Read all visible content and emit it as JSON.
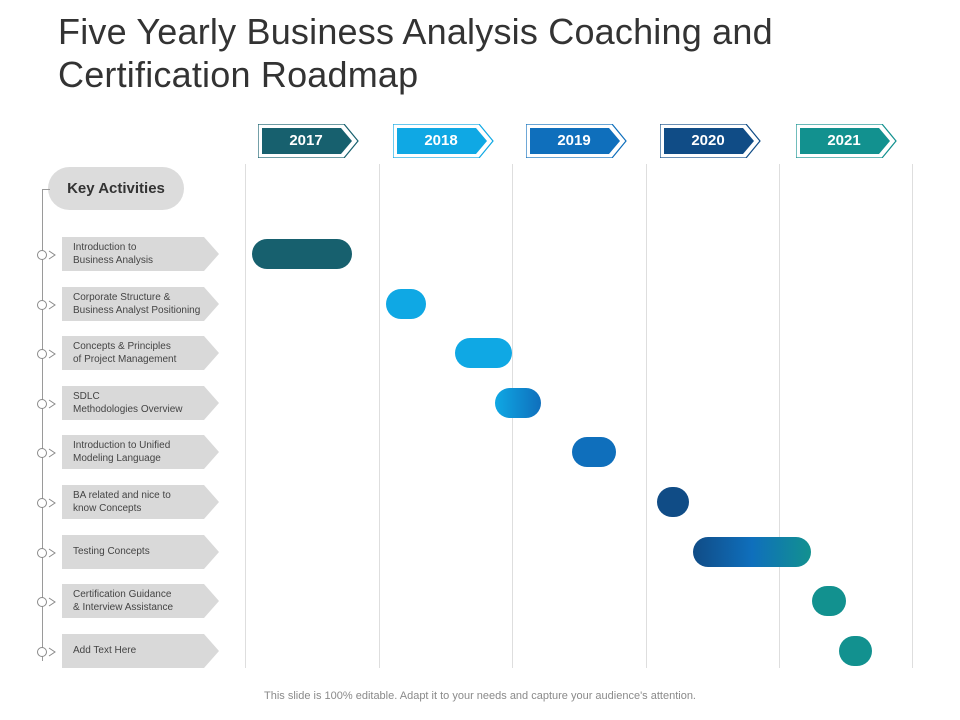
{
  "title": "Five Yearly Business Analysis Coaching and Certification Roadmap",
  "years": [
    {
      "label": "2017",
      "color": "#17606e"
    },
    {
      "label": "2018",
      "color": "#0fa8e4"
    },
    {
      "label": "2019",
      "color": "#0f6fbc"
    },
    {
      "label": "2020",
      "color": "#104c86"
    },
    {
      "label": "2021",
      "color": "#12918f"
    }
  ],
  "key_activities_label": "Key Activities",
  "activities": [
    {
      "label": "Introduction to\nBusiness Analysis",
      "start": 2017.05,
      "end": 2017.8,
      "color": "#17606e"
    },
    {
      "label": "Corporate Structure &\nBusiness Analyst Positioning",
      "start": 2018.05,
      "end": 2018.35,
      "color": "#0fa8e4"
    },
    {
      "label": "Concepts & Principles\nof Project Management",
      "start": 2018.57,
      "end": 2019.0,
      "color": "#0fa8e4"
    },
    {
      "label": "SDLC\nMethodologies Overview",
      "start": 2018.87,
      "end": 2019.22,
      "color": "#0f6fbc",
      "gradient": [
        "#0fa8e4",
        "#0f6fbc"
      ]
    },
    {
      "label": "Introduction to Unified\nModeling Language",
      "start": 2019.45,
      "end": 2019.78,
      "color": "#0f6fbc"
    },
    {
      "label": "BA related and nice to\nknow Concepts",
      "start": 2020.08,
      "end": 2020.32,
      "color": "#104c86"
    },
    {
      "label": "Testing Concepts",
      "start": 2020.35,
      "end": 2021.24,
      "color": "#104c86",
      "gradient": [
        "#104c86",
        "#0f6fbc",
        "#12918f"
      ]
    },
    {
      "label": "Certification Guidance\n& Interview Assistance",
      "start": 2021.25,
      "end": 2021.5,
      "color": "#12918f"
    },
    {
      "label": "Add Text Here",
      "start": 2021.45,
      "end": 2021.7,
      "color": "#12918f"
    }
  ],
  "footer": "This slide is 100% editable. Adapt it to your needs and capture your audience's attention."
}
